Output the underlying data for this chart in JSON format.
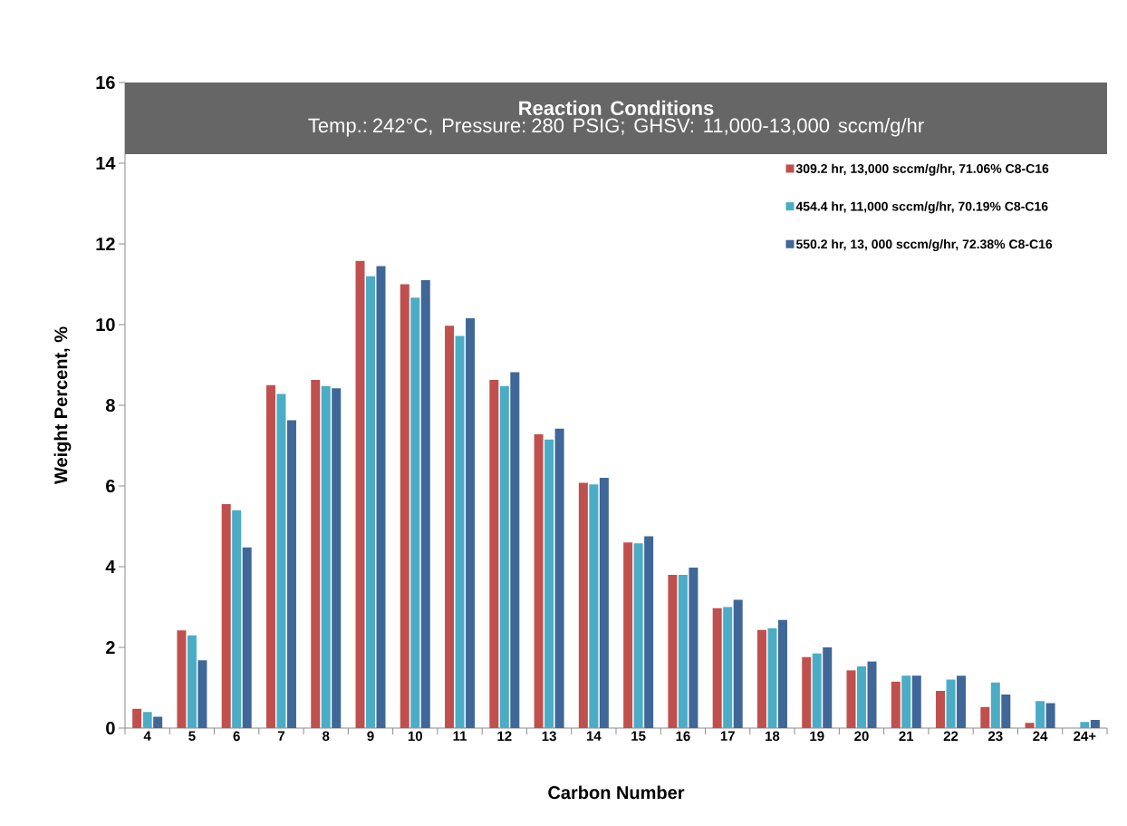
{
  "chart_data": {
    "type": "bar",
    "title": "Reaction Conditions",
    "subtitle": "Temp.: 242°C, Pressure:  280 PSIG; GHSV: 11,000-13,000 sccm/g/hr",
    "xlabel": "Carbon Number",
    "ylabel": "Weight Percent, %",
    "categories": [
      "4",
      "5",
      "6",
      "7",
      "8",
      "9",
      "10",
      "11",
      "12",
      "13",
      "14",
      "15",
      "16",
      "17",
      "18",
      "19",
      "20",
      "21",
      "22",
      "23",
      "24",
      "24+"
    ],
    "series": [
      {
        "name": "309.2 hr, 13,000 sccm/g/hr, 71.06% C8-C16",
        "color": "#c0504d",
        "values": [
          0.48,
          2.42,
          5.55,
          8.5,
          8.63,
          11.58,
          11.0,
          9.97,
          8.63,
          7.28,
          6.08,
          4.6,
          3.8,
          2.97,
          2.43,
          1.76,
          1.43,
          1.15,
          0.92,
          0.52,
          0.13,
          null
        ]
      },
      {
        "name": "454.4 hr, 11,000 sccm/g/hr, 70.19% C8-C16",
        "color": "#4bacc6",
        "values": [
          0.4,
          2.3,
          5.4,
          8.28,
          8.48,
          11.2,
          10.67,
          9.72,
          8.48,
          7.15,
          6.04,
          4.58,
          3.8,
          3.0,
          2.47,
          1.85,
          1.53,
          1.3,
          1.2,
          1.13,
          0.67,
          0.15
        ]
      },
      {
        "name": "550.2 hr, 13, 000 sccm/g/hr, 72.38% C8-C16",
        "color": "#3f6797",
        "values": [
          0.28,
          1.68,
          4.48,
          7.63,
          8.42,
          11.45,
          11.1,
          10.16,
          8.82,
          7.42,
          6.2,
          4.75,
          3.98,
          3.18,
          2.68,
          2.0,
          1.65,
          1.3,
          1.3,
          0.83,
          0.62,
          0.2
        ]
      }
    ],
    "ylim": [
      0,
      16
    ],
    "yticks": [
      0,
      2,
      4,
      6,
      8,
      10,
      12,
      14,
      16
    ],
    "legend": "top right"
  }
}
